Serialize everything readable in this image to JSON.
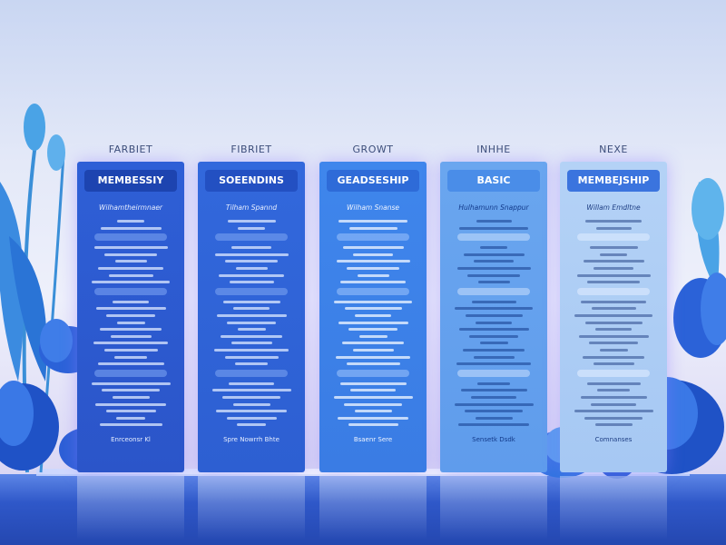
{
  "cards": [
    {
      "label": "FARBIET",
      "title": "MEMBESSIY",
      "subtitle": "Wilhamtheirmnaer",
      "footer": "Enrceonsr Kl"
    },
    {
      "label": "FIBRIET",
      "title": "SOEENDINS",
      "subtitle": "Tilham Spannd",
      "footer": "Spre Nowrrh Bhte"
    },
    {
      "label": "GROWT",
      "title": "GEADSESHIP",
      "subtitle": "Wilham Snanse",
      "footer": "Bsaenr Sere"
    },
    {
      "label": "INHHE",
      "title": "BASIC",
      "subtitle": "Hulhamunn Snappur",
      "footer": "Sensetk Dsdk"
    },
    {
      "label": "NEXE",
      "title": "MEMBEJSHIP",
      "subtitle": "Willam Emdltne",
      "footer": "Comnanses"
    }
  ]
}
